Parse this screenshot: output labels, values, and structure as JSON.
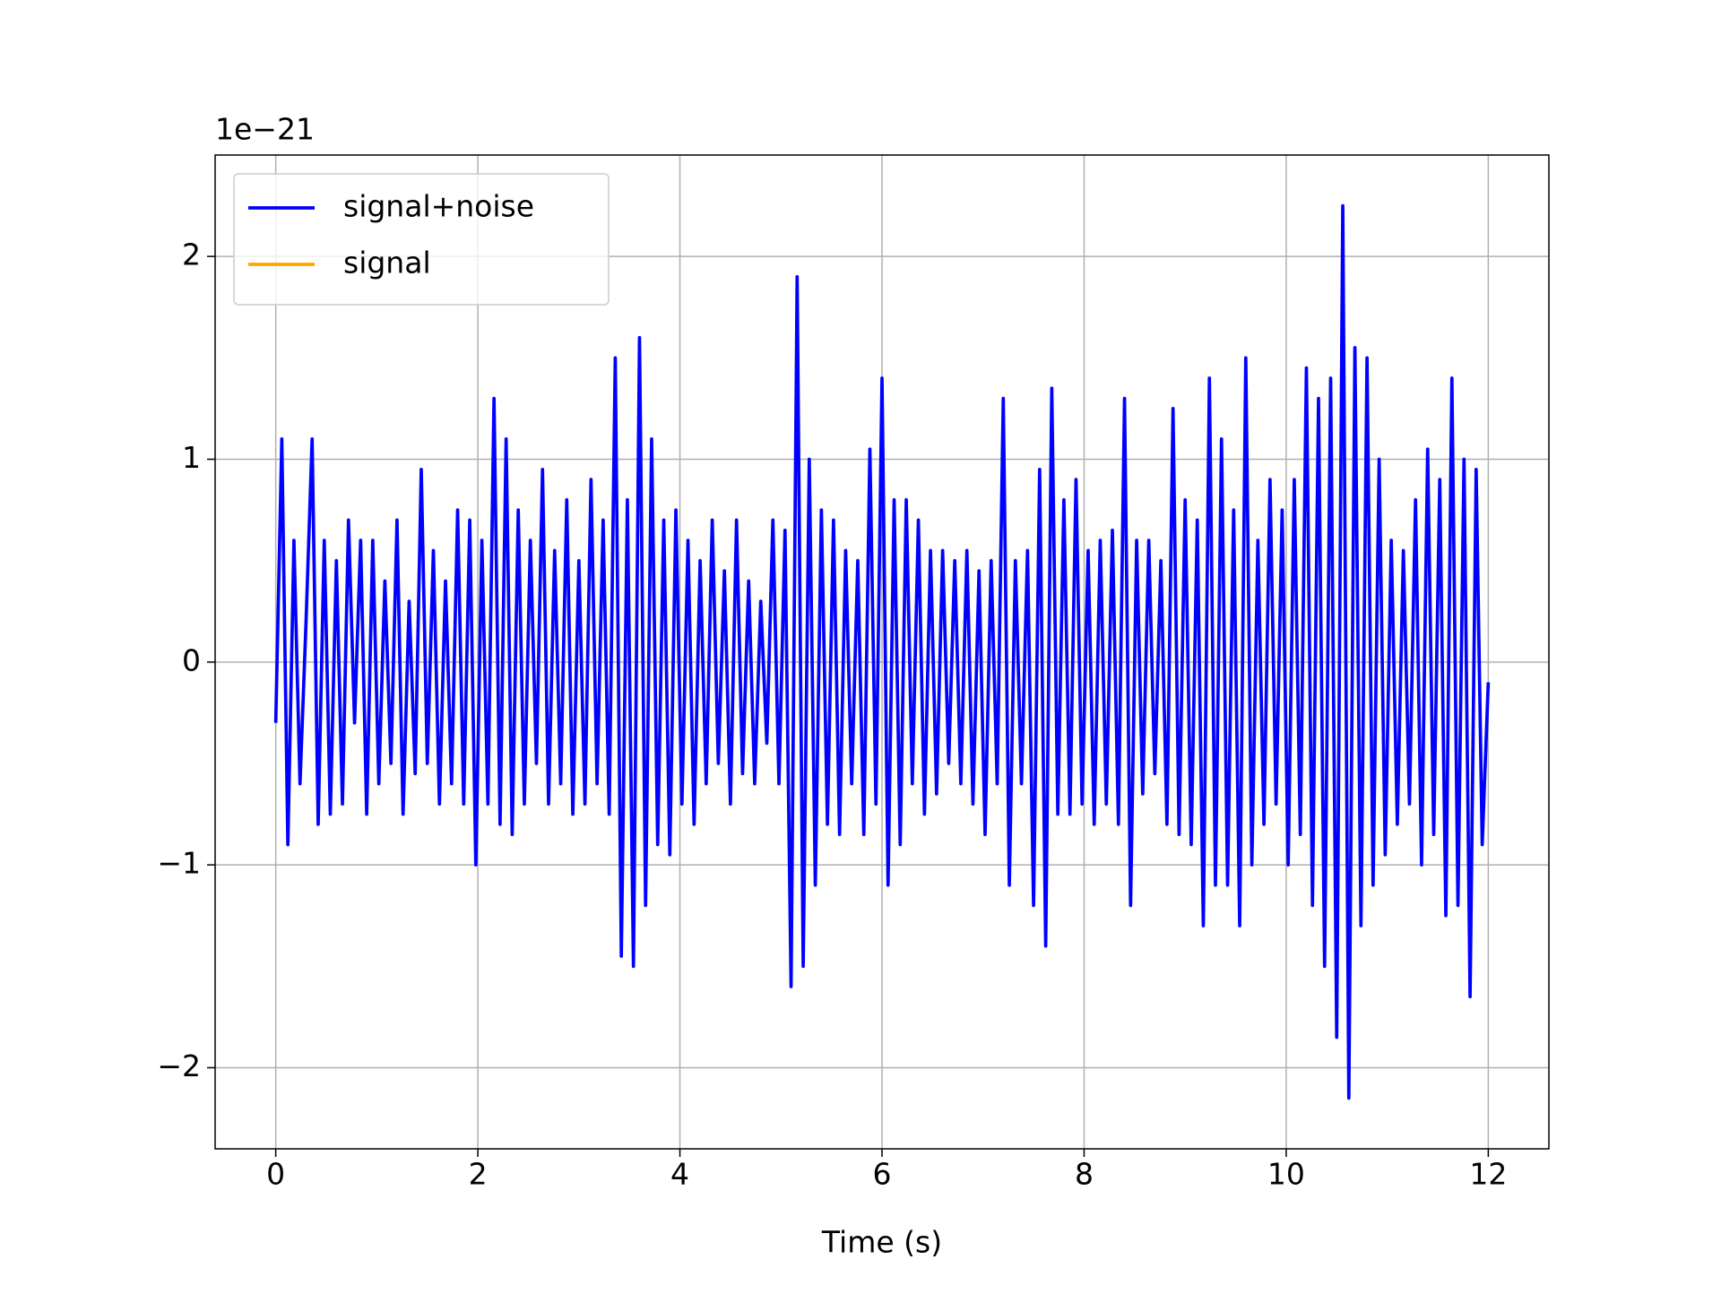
{
  "chart_data": {
    "type": "line",
    "xlabel": "Time (s)",
    "y_offset_label": "1e−21",
    "xlim": [
      -0.6,
      12.6
    ],
    "ylim": [
      -2.4,
      2.5
    ],
    "xticks": [
      0,
      2,
      4,
      6,
      8,
      10,
      12
    ],
    "yticks": [
      {
        "value": -2,
        "label": "−2"
      },
      {
        "value": -1,
        "label": "−1"
      },
      0,
      1,
      2
    ],
    "grid": true,
    "legend": "upper left",
    "x": [
      0,
      0.06,
      0.12,
      0.18,
      0.24,
      0.3,
      0.36,
      0.42,
      0.48,
      0.54,
      0.6,
      0.66,
      0.72,
      0.78,
      0.84,
      0.9,
      0.96,
      1.02,
      1.08,
      1.14,
      1.2,
      1.26,
      1.32,
      1.38,
      1.44,
      1.5,
      1.56,
      1.62,
      1.68,
      1.74,
      1.8,
      1.86,
      1.92,
      1.98,
      2.04,
      2.1,
      2.16,
      2.22,
      2.28,
      2.34,
      2.4,
      2.46,
      2.52,
      2.58,
      2.64,
      2.7,
      2.76,
      2.82,
      2.88,
      2.94,
      3,
      3.06,
      3.12,
      3.18,
      3.24,
      3.3,
      3.36,
      3.42,
      3.48,
      3.54,
      3.6,
      3.66,
      3.72,
      3.78,
      3.84,
      3.9,
      3.96,
      4.02,
      4.08,
      4.14,
      4.2,
      4.26,
      4.32,
      4.38,
      4.44,
      4.5,
      4.56,
      4.62,
      4.68,
      4.74,
      4.8,
      4.86,
      4.92,
      4.98,
      5.04,
      5.1,
      5.16,
      5.22,
      5.28,
      5.34,
      5.4,
      5.46,
      5.52,
      5.58,
      5.64,
      5.7,
      5.76,
      5.82,
      5.88,
      5.94,
      6,
      6.06,
      6.12,
      6.18,
      6.24,
      6.3,
      6.36,
      6.42,
      6.48,
      6.54,
      6.6,
      6.66,
      6.72,
      6.78,
      6.84,
      6.9,
      6.96,
      7.02,
      7.08,
      7.14,
      7.2,
      7.26,
      7.32,
      7.38,
      7.44,
      7.5,
      7.56,
      7.62,
      7.68,
      7.74,
      7.8,
      7.86,
      7.92,
      7.98,
      8.04,
      8.1,
      8.16,
      8.22,
      8.28,
      8.34,
      8.4,
      8.46,
      8.52,
      8.58,
      8.64,
      8.7,
      8.76,
      8.82,
      8.88,
      8.94,
      9,
      9.06,
      9.12,
      9.18,
      9.24,
      9.3,
      9.36,
      9.42,
      9.48,
      9.54,
      9.6,
      9.66,
      9.72,
      9.78,
      9.84,
      9.9,
      9.96,
      10.02,
      10.08,
      10.14,
      10.2,
      10.26,
      10.32,
      10.38,
      10.44,
      10.5,
      10.56,
      10.62,
      10.68,
      10.74,
      10.8,
      10.86,
      10.92,
      10.98,
      11.04,
      11.1,
      11.16,
      11.22,
      11.28,
      11.34,
      11.4,
      11.46,
      11.52,
      11.58,
      11.64,
      11.7,
      11.76,
      11.82,
      11.88,
      11.94,
      12
    ],
    "series": [
      {
        "name": "signal+noise",
        "color": "#0000ff",
        "values": [
          -0.3,
          1.1,
          -0.9,
          0.6,
          -0.6,
          0.2,
          1.1,
          -0.8,
          0.6,
          -0.75,
          0.5,
          -0.7,
          0.7,
          -0.3,
          0.6,
          -0.75,
          0.6,
          -0.6,
          0.4,
          -0.5,
          0.7,
          -0.75,
          0.3,
          -0.55,
          0.95,
          -0.5,
          0.55,
          -0.7,
          0.4,
          -0.6,
          0.75,
          -0.7,
          0.7,
          -1.0,
          0.6,
          -0.7,
          1.3,
          -0.8,
          1.1,
          -0.85,
          0.75,
          -0.7,
          0.6,
          -0.5,
          0.95,
          -0.7,
          0.55,
          -0.6,
          0.8,
          -0.75,
          0.5,
          -0.7,
          0.9,
          -0.6,
          0.7,
          -0.75,
          1.5,
          -1.45,
          0.8,
          -1.5,
          1.6,
          -1.2,
          1.1,
          -0.9,
          0.7,
          -0.95,
          0.75,
          -0.7,
          0.6,
          -0.8,
          0.5,
          -0.6,
          0.7,
          -0.5,
          0.45,
          -0.7,
          0.7,
          -0.55,
          0.4,
          -0.6,
          0.3,
          -0.4,
          0.7,
          -0.6,
          0.65,
          -1.6,
          1.9,
          -1.5,
          1.0,
          -1.1,
          0.75,
          -0.8,
          0.7,
          -0.85,
          0.55,
          -0.6,
          0.5,
          -0.85,
          1.05,
          -0.7,
          1.4,
          -1.1,
          0.8,
          -0.9,
          0.8,
          -0.6,
          0.7,
          -0.75,
          0.55,
          -0.65,
          0.55,
          -0.5,
          0.5,
          -0.6,
          0.55,
          -0.7,
          0.45,
          -0.85,
          0.5,
          -0.6,
          1.3,
          -1.1,
          0.5,
          -0.6,
          0.55,
          -1.2,
          0.95,
          -1.4,
          1.35,
          -0.75,
          0.8,
          -0.75,
          0.9,
          -0.7,
          0.55,
          -0.8,
          0.6,
          -0.7,
          0.65,
          -0.8,
          1.3,
          -1.2,
          0.6,
          -0.65,
          0.6,
          -0.55,
          0.5,
          -0.8,
          1.25,
          -0.85,
          0.8,
          -0.9,
          0.7,
          -1.3,
          1.4,
          -1.1,
          1.1,
          -1.1,
          0.75,
          -1.3,
          1.5,
          -1.0,
          0.6,
          -0.8,
          0.9,
          -0.7,
          0.75,
          -1.0,
          0.9,
          -0.85,
          1.45,
          -1.2,
          1.3,
          -1.5,
          1.4,
          -1.85,
          2.25,
          -2.15,
          1.55,
          -1.3,
          1.5,
          -1.1,
          1.0,
          -0.95,
          0.6,
          -0.8,
          0.55,
          -0.7,
          0.8,
          -1.0,
          1.05,
          -0.85,
          0.9,
          -1.25,
          1.4,
          -1.2,
          1.0,
          -1.65,
          0.95,
          -0.9,
          -0.1
        ]
      },
      {
        "name": "signal",
        "color": "#ffa500",
        "values": [
          null,
          null,
          null,
          null,
          null,
          null,
          null,
          null,
          null,
          null,
          null,
          null,
          null,
          null,
          null,
          null,
          null,
          null,
          null,
          null,
          null,
          null,
          null,
          null,
          null,
          null,
          null,
          null,
          null,
          null,
          null,
          null,
          null,
          null,
          null,
          null,
          null,
          null,
          null,
          null,
          null,
          null,
          null,
          null,
          null,
          null,
          null,
          null,
          null,
          null,
          null,
          null,
          null,
          null,
          null,
          null,
          null,
          null,
          null,
          null,
          null,
          null,
          null,
          null,
          null,
          null,
          null,
          null,
          null,
          null,
          null,
          null,
          null,
          null,
          null,
          null,
          null,
          null,
          null,
          null,
          null,
          null,
          null,
          null,
          null,
          null,
          null,
          null,
          null,
          null,
          null,
          null,
          null,
          null,
          null,
          null,
          null,
          null,
          null,
          null,
          null,
          null,
          null,
          null,
          null,
          null,
          null,
          null,
          null,
          null,
          null,
          null,
          null,
          null,
          null,
          null,
          null,
          null,
          null,
          null,
          null,
          null,
          null,
          null,
          null,
          null,
          null,
          null,
          null,
          null,
          null,
          null,
          null,
          null,
          null,
          null,
          null,
          null,
          null,
          null,
          null,
          null,
          null,
          null,
          null,
          null,
          null,
          null,
          null,
          null,
          null,
          null,
          null,
          null,
          null,
          null,
          null,
          null,
          null,
          null,
          null,
          null,
          null,
          null,
          null,
          null,
          null,
          null,
          null,
          null,
          null,
          null,
          null,
          null,
          null,
          null,
          null,
          null,
          null,
          null,
          null,
          null,
          null,
          null,
          null,
          null,
          null,
          null,
          null,
          null,
          null,
          null,
          null,
          null,
          null,
          null,
          null,
          null,
          null,
          null,
          null
        ]
      }
    ]
  }
}
